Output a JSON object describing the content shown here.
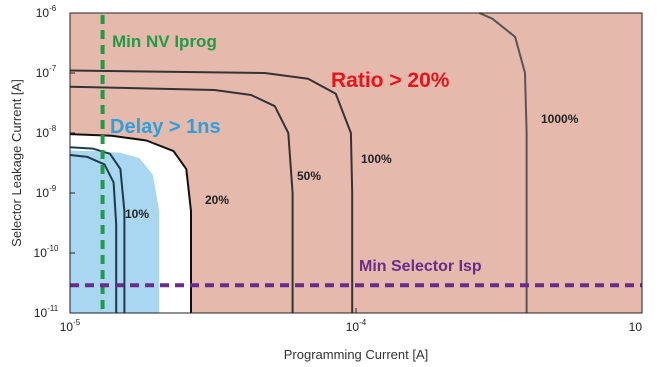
{
  "chart_data": {
    "type": "line",
    "xlabel": "Programming Current [A]",
    "ylabel": "Selector Leakage Current [A]",
    "x_scale": "log",
    "y_scale": "log",
    "xlim": [
      1e-05,
      0.001
    ],
    "ylim": [
      1e-11,
      1e-06
    ],
    "x_ticks": [
      {
        "value": 1e-05,
        "base": "10",
        "exp": "-5"
      },
      {
        "value": 0.0001,
        "base": "10",
        "exp": "-4"
      },
      {
        "value": 0.001,
        "base": "10",
        "exp": ""
      }
    ],
    "y_ticks": [
      {
        "value": 1e-11,
        "base": "10",
        "exp": "-11"
      },
      {
        "value": 1e-10,
        "base": "10",
        "exp": "-10"
      },
      {
        "value": 1e-09,
        "base": "10",
        "exp": "-9"
      },
      {
        "value": 1e-08,
        "base": "10",
        "exp": "-8"
      },
      {
        "value": 1e-07,
        "base": "10",
        "exp": "-7"
      },
      {
        "value": 1e-06,
        "base": "10",
        "exp": "-6"
      }
    ],
    "regions": [
      {
        "label": "Ratio > 20%",
        "color": "#e6b9ad",
        "label_color": "#e8141a"
      },
      {
        "label": "Delay > 1ns",
        "color": "#a9d6f1",
        "label_color": "#2aa1dd"
      }
    ],
    "series": [
      {
        "name": "10%",
        "color": "#1d3b48",
        "label_color": "#5b7a86",
        "points": [
          [
            1.45e-05,
            1e-11
          ],
          [
            1.45e-05,
            3e-10
          ],
          [
            1.42e-05,
            1.5e-09
          ],
          [
            1.32e-05,
            3e-09
          ],
          [
            1.15e-05,
            4e-09
          ],
          [
            1e-05,
            4.3e-09
          ]
        ]
      },
      {
        "name": "",
        "color": "#1d3b48",
        "points": [
          [
            1.55e-05,
            1e-11
          ],
          [
            1.55e-05,
            5e-10
          ],
          [
            1.5e-05,
            2.5e-09
          ],
          [
            1.38e-05,
            4.5e-09
          ],
          [
            1.2e-05,
            5.5e-09
          ],
          [
            1e-05,
            5.8e-09
          ]
        ]
      },
      {
        "name": "20%",
        "color": "#111111",
        "points": [
          [
            2.65e-05,
            1e-11
          ],
          [
            2.65e-05,
            5e-10
          ],
          [
            2.55e-05,
            2.5e-09
          ],
          [
            2.3e-05,
            5e-09
          ],
          [
            1.85e-05,
            7.5e-09
          ],
          [
            1.4e-05,
            9e-09
          ],
          [
            1e-05,
            9.6e-09
          ]
        ]
      },
      {
        "name": "50%",
        "color": "#333333",
        "points": [
          [
            6e-05,
            1e-11
          ],
          [
            6e-05,
            1e-09
          ],
          [
            5.8e-05,
            1e-08
          ],
          [
            5.2e-05,
            2.8e-08
          ],
          [
            4.3e-05,
            4.3e-08
          ],
          [
            3.2e-05,
            5.2e-08
          ],
          [
            1e-05,
            5.9e-08
          ]
        ]
      },
      {
        "name": "100%",
        "color": "#333333",
        "points": [
          [
            9.7e-05,
            1e-11
          ],
          [
            9.7e-05,
            1e-09
          ],
          [
            9.6e-05,
            1e-08
          ],
          [
            8.5e-05,
            4.5e-08
          ],
          [
            6.8e-05,
            8e-08
          ],
          [
            4.8e-05,
            1e-07
          ],
          [
            1e-05,
            1.1e-07
          ]
        ]
      },
      {
        "name": "1000%",
        "color": "#555555",
        "points": [
          [
            0.000395,
            1e-11
          ],
          [
            0.000395,
            1e-08
          ],
          [
            0.00039,
            1e-07
          ],
          [
            0.00036,
            4e-07
          ],
          [
            0.0003,
            8e-07
          ],
          [
            0.00027,
            1e-06
          ]
        ]
      }
    ],
    "thresholds": [
      {
        "label": "Min NV Iprog",
        "orientation": "vertical",
        "value": 1.3e-05,
        "color": "#1f9b48"
      },
      {
        "label": "Min Selector Isp",
        "orientation": "horizontal",
        "value": 2.9e-11,
        "color": "#6a2c8c"
      }
    ]
  }
}
